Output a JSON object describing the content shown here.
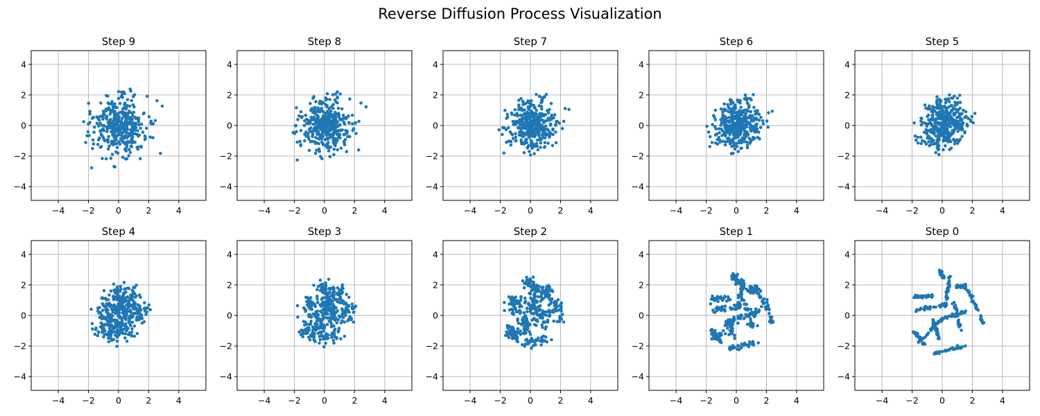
{
  "figure": {
    "suptitle": "Reverse Diffusion Process Visualization"
  },
  "chart_data": [
    {
      "type": "scatter",
      "title": "Step 9",
      "xlim": [
        -5.8,
        5.8
      ],
      "ylim": [
        -4.9,
        4.9
      ],
      "xticks": [
        -4,
        -2,
        0,
        2,
        4
      ],
      "yticks": [
        -4,
        -2,
        0,
        2,
        4
      ],
      "grid": true,
      "color": "#1f77b4",
      "points": []
    },
    {
      "type": "scatter",
      "title": "Step 8",
      "xlim": [
        -5.8,
        5.8
      ],
      "ylim": [
        -4.9,
        4.9
      ],
      "xticks": [
        -4,
        -2,
        0,
        2,
        4
      ],
      "yticks": [
        -4,
        -2,
        0,
        2,
        4
      ],
      "grid": true,
      "color": "#1f77b4",
      "points": []
    },
    {
      "type": "scatter",
      "title": "Step 7",
      "xlim": [
        -5.8,
        5.8
      ],
      "ylim": [
        -4.9,
        4.9
      ],
      "xticks": [
        -4,
        -2,
        0,
        2,
        4
      ],
      "yticks": [
        -4,
        -2,
        0,
        2,
        4
      ],
      "grid": true,
      "color": "#1f77b4",
      "points": []
    },
    {
      "type": "scatter",
      "title": "Step 6",
      "xlim": [
        -5.8,
        5.8
      ],
      "ylim": [
        -4.9,
        4.9
      ],
      "xticks": [
        -4,
        -2,
        0,
        2,
        4
      ],
      "yticks": [
        -4,
        -2,
        0,
        2,
        4
      ],
      "grid": true,
      "color": "#1f77b4",
      "points": []
    },
    {
      "type": "scatter",
      "title": "Step 5",
      "xlim": [
        -5.8,
        5.8
      ],
      "ylim": [
        -4.9,
        4.9
      ],
      "xticks": [
        -4,
        -2,
        0,
        2,
        4
      ],
      "yticks": [
        -4,
        -2,
        0,
        2,
        4
      ],
      "grid": true,
      "color": "#1f77b4",
      "points": []
    },
    {
      "type": "scatter",
      "title": "Step 4",
      "xlim": [
        -5.8,
        5.8
      ],
      "ylim": [
        -4.9,
        4.9
      ],
      "xticks": [
        -4,
        -2,
        0,
        2,
        4
      ],
      "yticks": [
        -4,
        -2,
        0,
        2,
        4
      ],
      "grid": true,
      "color": "#1f77b4",
      "points": []
    },
    {
      "type": "scatter",
      "title": "Step 3",
      "xlim": [
        -5.8,
        5.8
      ],
      "ylim": [
        -4.9,
        4.9
      ],
      "xticks": [
        -4,
        -2,
        0,
        2,
        4
      ],
      "yticks": [
        -4,
        -2,
        0,
        2,
        4
      ],
      "grid": true,
      "color": "#1f77b4",
      "points": []
    },
    {
      "type": "scatter",
      "title": "Step 2",
      "xlim": [
        -5.8,
        5.8
      ],
      "ylim": [
        -4.9,
        4.9
      ],
      "xticks": [
        -4,
        -2,
        0,
        2,
        4
      ],
      "yticks": [
        -4,
        -2,
        0,
        2,
        4
      ],
      "grid": true,
      "color": "#1f77b4",
      "points": []
    },
    {
      "type": "scatter",
      "title": "Step 1",
      "xlim": [
        -5.8,
        5.8
      ],
      "ylim": [
        -4.9,
        4.9
      ],
      "xticks": [
        -4,
        -2,
        0,
        2,
        4
      ],
      "yticks": [
        -4,
        -2,
        0,
        2,
        4
      ],
      "grid": true,
      "color": "#1f77b4",
      "points": []
    },
    {
      "type": "scatter",
      "title": "Step 0",
      "xlim": [
        -5.8,
        5.8
      ],
      "ylim": [
        -4.9,
        4.9
      ],
      "xticks": [
        -4,
        -2,
        0,
        2,
        4
      ],
      "yticks": [
        -4,
        -2,
        0,
        2,
        4
      ],
      "grid": true,
      "color": "#1f77b4",
      "points": []
    }
  ]
}
